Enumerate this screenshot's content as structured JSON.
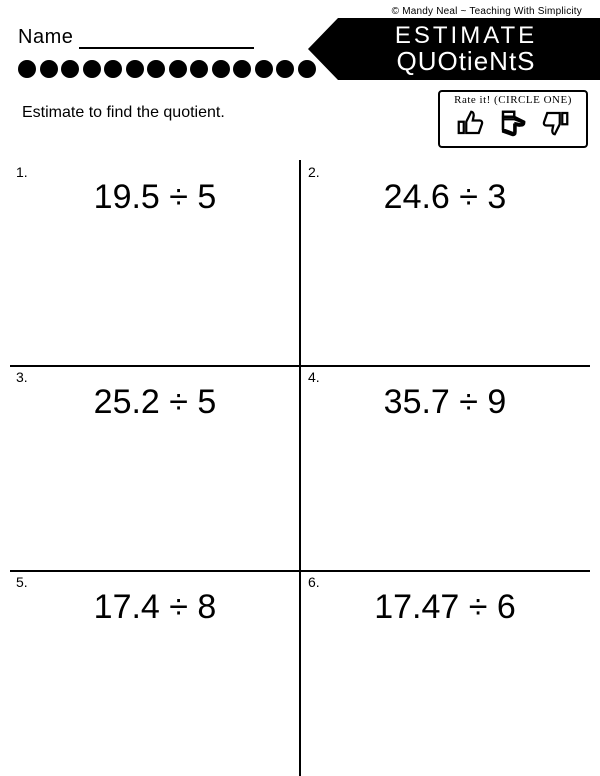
{
  "copyright": "© Mandy Neal ~ Teaching With Simplicity",
  "name_label": "Name",
  "title": {
    "line1": "ESTIMATE",
    "line2": "QUOtieNtS"
  },
  "instruction": "Estimate to find the quotient.",
  "rate_title": "Rate it! (CIRCLE ONE)",
  "dot_count": 14,
  "problems": [
    {
      "num": "1.",
      "expr": "19.5 ÷ 5"
    },
    {
      "num": "2.",
      "expr": "24.6 ÷ 3"
    },
    {
      "num": "3.",
      "expr": "25.2 ÷ 5"
    },
    {
      "num": "4.",
      "expr": "35.7 ÷ 9"
    },
    {
      "num": "5.",
      "expr": "17.4 ÷ 8"
    },
    {
      "num": "6.",
      "expr": "17.47 ÷ 6"
    }
  ],
  "colors": {
    "bg": "#ffffff",
    "fg": "#000000"
  }
}
